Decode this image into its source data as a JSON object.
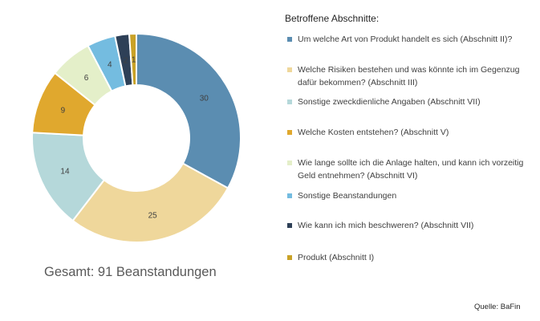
{
  "chart_data": {
    "type": "pie",
    "legend_title": "Betroffene Abschnitte:",
    "legend_position": "right",
    "slices": [
      {
        "label": "Um welche Art von Produkt handelt es sich (Abschnitt II)?",
        "value": 30,
        "color": "#5B8DB1"
      },
      {
        "label": "Welche Risiken bestehen und was könnte ich im Gegenzug dafür bekommen? (Abschnitt III)",
        "value": 25,
        "color": "#EFD79B"
      },
      {
        "label": "Sonstige zweckdienliche Angaben (Abschnitt VII)",
        "value": 14,
        "color": "#B5D8DA"
      },
      {
        "label": "Welche Kosten entstehen? (Abschnitt V)",
        "value": 9,
        "color": "#E0A82E"
      },
      {
        "label": "Wie lange sollte ich die Anlage halten, und kann ich vorzeitig Geld entnehmen? (Abschnitt VI)",
        "value": 6,
        "color": "#E4EFC9"
      },
      {
        "label": "Sonstige Beanstandungen",
        "value": 4,
        "color": "#74BCE0"
      },
      {
        "label": "Wie kann ich mich beschweren? (Abschnitt VII)",
        "value": 2,
        "color": "#2E4057"
      },
      {
        "label": "Produkt (Abschnitt I)",
        "value": 1,
        "color": "#C9A227"
      }
    ]
  },
  "total_text": "Gesamt: 91 Beanstandungen",
  "source_text": "Quelle: BaFin"
}
